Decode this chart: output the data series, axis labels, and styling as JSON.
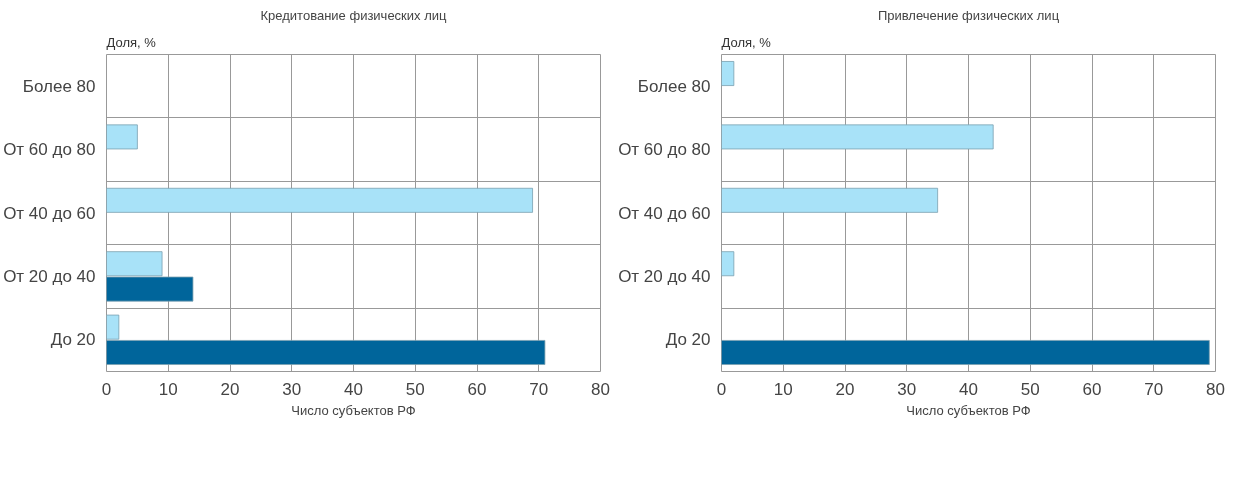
{
  "chart_data": [
    {
      "type": "bar",
      "orientation": "horizontal",
      "title": "Кредитование физических лиц",
      "ylabel": "Доля, %",
      "xlabel": "Число субъектов РФ",
      "categories": [
        "Более 80",
        "От 60 до 80",
        "От 40 до 60",
        "От 20 до 40",
        "До 20"
      ],
      "series": [
        {
          "color": "#a8e2f8",
          "values": [
            null,
            5,
            69,
            9,
            2
          ]
        },
        {
          "color": "#00659b",
          "values": [
            null,
            null,
            null,
            14,
            71
          ]
        }
      ],
      "xlim": [
        0,
        80
      ],
      "xticks": [
        0,
        10,
        20,
        30,
        40,
        50,
        60,
        70,
        80
      ],
      "grid": true
    },
    {
      "type": "bar",
      "orientation": "horizontal",
      "title": "Привлечение физических лиц",
      "ylabel": "Доля, %",
      "xlabel": "Число субъектов РФ",
      "categories": [
        "Более 80",
        "От 60 до 80",
        "От 40 до 60",
        "От 20 до 40",
        "До 20"
      ],
      "series": [
        {
          "color": "#a8e2f8",
          "values": [
            2,
            44,
            35,
            2,
            null
          ]
        },
        {
          "color": "#00659b",
          "values": [
            null,
            null,
            null,
            null,
            79
          ]
        }
      ],
      "xlim": [
        0,
        80
      ],
      "xticks": [
        0,
        10,
        20,
        30,
        40,
        50,
        60,
        70,
        80
      ],
      "grid": true
    }
  ]
}
